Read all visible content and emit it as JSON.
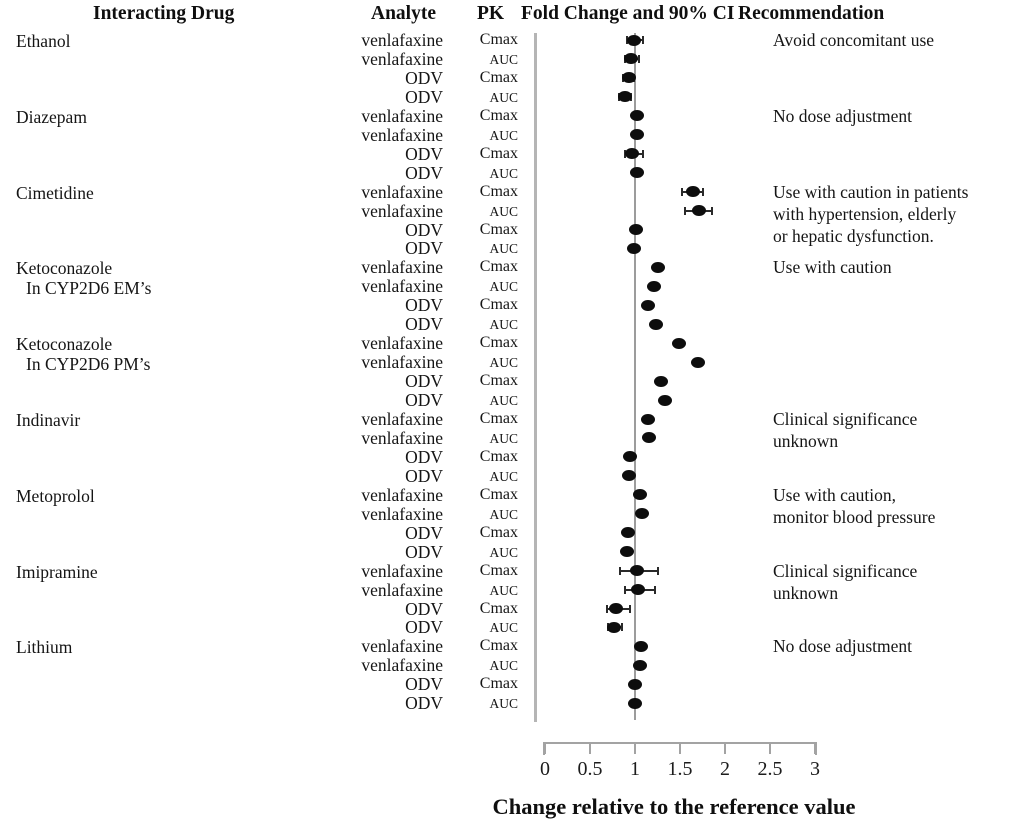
{
  "header": {
    "interacting_drug": "Interacting Drug",
    "analyte": "Analyte",
    "pk": "PK",
    "fold_change": "Fold Change and 90% CI",
    "recommendation": "Recommendation"
  },
  "axis": {
    "label": "Change relative to the reference value",
    "tick_labels": [
      "0",
      "0.5",
      "1",
      "1.5",
      "2",
      "2.5",
      "3"
    ],
    "min": 0,
    "max": 3,
    "reference_value": 1
  },
  "colors": {
    "text": "#151515",
    "marker": "#0d0d0d",
    "axis_line": "#a3a3a3",
    "reference_line": "#9c9c9c",
    "separator_line": "#b5b5b5"
  },
  "chart_data": {
    "type": "scatter",
    "subtype": "forest-plot",
    "title": "",
    "xlabel": "Change relative to the reference value",
    "ylabel": "",
    "xlim": [
      0,
      3
    ],
    "xticks": [
      0,
      0.5,
      1,
      1.5,
      2,
      2.5,
      3
    ],
    "reference_x": 1,
    "grid": false,
    "legend": null,
    "groups": [
      {
        "drug_lines": [
          "Ethanol"
        ],
        "recommendation_lines": [
          "Avoid concomitant use"
        ],
        "rows": [
          {
            "analyte": "venlafaxine",
            "pk": "Cmax",
            "value": 0.99,
            "ci90": [
              0.91,
              1.09
            ]
          },
          {
            "analyte": "venlafaxine",
            "pk": "AUC",
            "value": 0.96,
            "ci90": [
              0.89,
              1.04
            ]
          },
          {
            "analyte": "ODV",
            "pk": "Cmax",
            "value": 0.93,
            "ci90": [
              0.87,
              0.99
            ]
          },
          {
            "analyte": "ODV",
            "pk": "AUC",
            "value": 0.89,
            "ci90": [
              0.82,
              0.96
            ]
          }
        ]
      },
      {
        "drug_lines": [
          "Diazepam"
        ],
        "recommendation_lines": [
          "No dose adjustment"
        ],
        "rows": [
          {
            "analyte": "venlafaxine",
            "pk": "Cmax",
            "value": 1.02,
            "ci90": null
          },
          {
            "analyte": "venlafaxine",
            "pk": "AUC",
            "value": 1.02,
            "ci90": null
          },
          {
            "analyte": "ODV",
            "pk": "Cmax",
            "value": 0.97,
            "ci90": [
              0.89,
              1.09
            ]
          },
          {
            "analyte": "ODV",
            "pk": "AUC",
            "value": 1.02,
            "ci90": null
          }
        ]
      },
      {
        "drug_lines": [
          "Cimetidine"
        ],
        "recommendation_lines": [
          "Use with caution in patients",
          "with hypertension, elderly",
          "or hepatic dysfunction."
        ],
        "rows": [
          {
            "analyte": "venlafaxine",
            "pk": "Cmax",
            "value": 1.64,
            "ci90": [
              1.52,
              1.76
            ]
          },
          {
            "analyte": "venlafaxine",
            "pk": "AUC",
            "value": 1.71,
            "ci90": [
              1.56,
              1.85
            ]
          },
          {
            "analyte": "ODV",
            "pk": "Cmax",
            "value": 1.01,
            "ci90": null
          },
          {
            "analyte": "ODV",
            "pk": "AUC",
            "value": 0.99,
            "ci90": null
          }
        ]
      },
      {
        "drug_lines": [
          "Ketoconazole",
          "In CYP2D6 EM’s"
        ],
        "recommendation_lines": [
          "Use with caution"
        ],
        "rows": [
          {
            "analyte": "venlafaxine",
            "pk": "Cmax",
            "value": 1.26,
            "ci90": null
          },
          {
            "analyte": "venlafaxine",
            "pk": "AUC",
            "value": 1.21,
            "ci90": null
          },
          {
            "analyte": "ODV",
            "pk": "Cmax",
            "value": 1.14,
            "ci90": null
          },
          {
            "analyte": "ODV",
            "pk": "AUC",
            "value": 1.23,
            "ci90": null
          }
        ]
      },
      {
        "drug_lines": [
          "Ketoconazole",
          "In CYP2D6 PM’s"
        ],
        "recommendation_lines": null,
        "rows": [
          {
            "analyte": "venlafaxine",
            "pk": "Cmax",
            "value": 1.49,
            "ci90": null
          },
          {
            "analyte": "venlafaxine",
            "pk": "AUC",
            "value": 1.7,
            "ci90": null
          },
          {
            "analyte": "ODV",
            "pk": "Cmax",
            "value": 1.29,
            "ci90": null
          },
          {
            "analyte": "ODV",
            "pk": "AUC",
            "value": 1.33,
            "ci90": null
          }
        ]
      },
      {
        "drug_lines": [
          "Indinavir"
        ],
        "recommendation_lines": [
          "Clinical significance",
          "unknown"
        ],
        "rows": [
          {
            "analyte": "venlafaxine",
            "pk": "Cmax",
            "value": 1.14,
            "ci90": null
          },
          {
            "analyte": "venlafaxine",
            "pk": "AUC",
            "value": 1.16,
            "ci90": null
          },
          {
            "analyte": "ODV",
            "pk": "Cmax",
            "value": 0.94,
            "ci90": null
          },
          {
            "analyte": "ODV",
            "pk": "AUC",
            "value": 0.93,
            "ci90": null
          }
        ]
      },
      {
        "drug_lines": [
          "Metoprolol"
        ],
        "recommendation_lines": [
          "Use with caution,",
          "monitor blood pressure"
        ],
        "rows": [
          {
            "analyte": "venlafaxine",
            "pk": "Cmax",
            "value": 1.05,
            "ci90": null
          },
          {
            "analyte": "venlafaxine",
            "pk": "AUC",
            "value": 1.08,
            "ci90": null
          },
          {
            "analyte": "ODV",
            "pk": "Cmax",
            "value": 0.92,
            "ci90": null
          },
          {
            "analyte": "ODV",
            "pk": "AUC",
            "value": 0.91,
            "ci90": null
          }
        ]
      },
      {
        "drug_lines": [
          "Imipramine"
        ],
        "recommendation_lines": [
          "Clinical significance",
          "unknown"
        ],
        "rows": [
          {
            "analyte": "venlafaxine",
            "pk": "Cmax",
            "value": 1.02,
            "ci90": [
              0.83,
              1.26
            ]
          },
          {
            "analyte": "venlafaxine",
            "pk": "AUC",
            "value": 1.03,
            "ci90": [
              0.89,
              1.22
            ]
          },
          {
            "analyte": "ODV",
            "pk": "Cmax",
            "value": 0.79,
            "ci90": [
              0.69,
              0.94
            ]
          },
          {
            "analyte": "ODV",
            "pk": "AUC",
            "value": 0.77,
            "ci90": [
              0.7,
              0.85
            ]
          }
        ]
      },
      {
        "drug_lines": [
          "Lithium"
        ],
        "recommendation_lines": [
          "No dose adjustment"
        ],
        "rows": [
          {
            "analyte": "venlafaxine",
            "pk": "Cmax",
            "value": 1.07,
            "ci90": null
          },
          {
            "analyte": "venlafaxine",
            "pk": "AUC",
            "value": 1.06,
            "ci90": null
          },
          {
            "analyte": "ODV",
            "pk": "Cmax",
            "value": 1.0,
            "ci90": null
          },
          {
            "analyte": "ODV",
            "pk": "AUC",
            "value": 1.0,
            "ci90": null
          }
        ]
      }
    ]
  }
}
